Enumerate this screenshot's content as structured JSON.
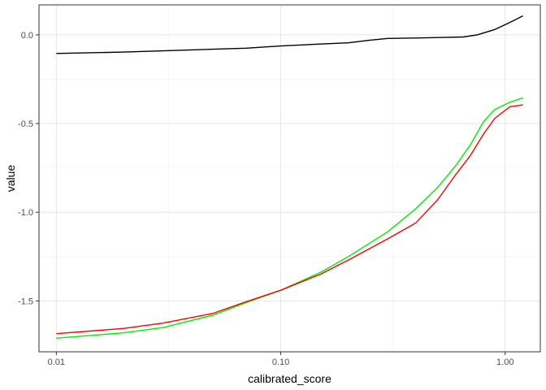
{
  "chart_data": {
    "type": "line",
    "xlabel": "calibrated_score",
    "ylabel": "value",
    "x_scale": "log10",
    "xlim": [
      0.00837,
      1.434
    ],
    "ylim": [
      -1.787,
      0.169
    ],
    "x_ticks": [
      {
        "value": 0.01,
        "label": "0.01"
      },
      {
        "value": 0.1,
        "label": "0.10"
      },
      {
        "value": 1.0,
        "label": "1.00"
      }
    ],
    "x_minor_ticks": [
      0.0316,
      0.316
    ],
    "y_ticks": [
      {
        "value": 0.0,
        "label": "0.0"
      },
      {
        "value": -0.5,
        "label": "-0.5"
      },
      {
        "value": -1.0,
        "label": "-1.0"
      },
      {
        "value": -1.5,
        "label": "-1.5"
      }
    ],
    "y_minor_ticks": [
      -0.25,
      -0.75,
      -1.25
    ],
    "grid": true,
    "series": [
      {
        "color": "#000000",
        "points": [
          [
            0.01,
            -0.105
          ],
          [
            0.02,
            -0.097
          ],
          [
            0.04,
            -0.085
          ],
          [
            0.07,
            -0.075
          ],
          [
            0.1,
            -0.063
          ],
          [
            0.15,
            -0.052
          ],
          [
            0.2,
            -0.045
          ],
          [
            0.25,
            -0.03
          ],
          [
            0.3,
            -0.02
          ],
          [
            0.4,
            -0.018
          ],
          [
            0.5,
            -0.015
          ],
          [
            0.65,
            -0.012
          ],
          [
            0.75,
            0.0
          ],
          [
            0.9,
            0.03
          ],
          [
            1.05,
            0.07
          ],
          [
            1.2,
            0.107
          ]
        ]
      },
      {
        "color": "#00ee00",
        "points": [
          [
            0.01,
            -1.71
          ],
          [
            0.02,
            -1.68
          ],
          [
            0.03,
            -1.65
          ],
          [
            0.05,
            -1.58
          ],
          [
            0.07,
            -1.51
          ],
          [
            0.1,
            -1.44
          ],
          [
            0.15,
            -1.34
          ],
          [
            0.2,
            -1.25
          ],
          [
            0.3,
            -1.11
          ],
          [
            0.4,
            -0.98
          ],
          [
            0.5,
            -0.86
          ],
          [
            0.6,
            -0.74
          ],
          [
            0.7,
            -0.62
          ],
          [
            0.8,
            -0.49
          ],
          [
            0.9,
            -0.42
          ],
          [
            1.05,
            -0.38
          ],
          [
            1.2,
            -0.355
          ]
        ]
      },
      {
        "color": "#ff0000",
        "points": [
          [
            0.01,
            -1.685
          ],
          [
            0.02,
            -1.655
          ],
          [
            0.03,
            -1.625
          ],
          [
            0.05,
            -1.57
          ],
          [
            0.07,
            -1.505
          ],
          [
            0.1,
            -1.44
          ],
          [
            0.15,
            -1.35
          ],
          [
            0.2,
            -1.27
          ],
          [
            0.3,
            -1.15
          ],
          [
            0.4,
            -1.06
          ],
          [
            0.5,
            -0.93
          ],
          [
            0.6,
            -0.79
          ],
          [
            0.7,
            -0.68
          ],
          [
            0.8,
            -0.56
          ],
          [
            0.9,
            -0.47
          ],
          [
            1.05,
            -0.405
          ],
          [
            1.2,
            -0.395
          ]
        ]
      }
    ]
  }
}
